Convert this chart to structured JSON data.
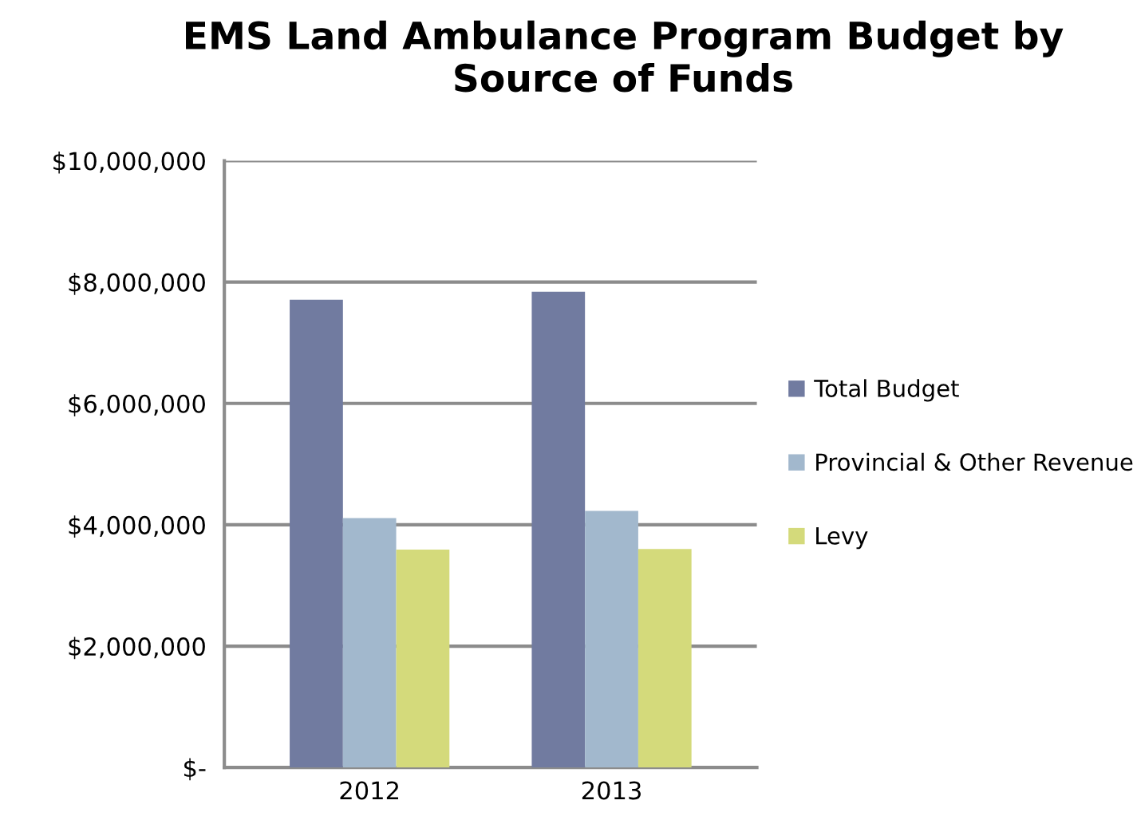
{
  "chart_data": {
    "type": "bar",
    "title": "EMS Land Ambulance Program Budget by Source of Funds",
    "categories": [
      "2012",
      "2013"
    ],
    "series": [
      {
        "name": "Total Budget",
        "color": "#717ba0",
        "values": [
          7710000,
          7840000
        ]
      },
      {
        "name": "Provincial & Other Revenue",
        "color": "#a2b8cd",
        "values": [
          4110000,
          4230000
        ]
      },
      {
        "name": "Levy",
        "color": "#d4da7b",
        "values": [
          3590000,
          3600000
        ]
      }
    ],
    "ylim": [
      0,
      10000000
    ],
    "yticks": [
      {
        "value": 0,
        "label": "$-"
      },
      {
        "value": 2000000,
        "label": "$2,000,000"
      },
      {
        "value": 4000000,
        "label": "$4,000,000"
      },
      {
        "value": 6000000,
        "label": "$6,000,000"
      },
      {
        "value": 8000000,
        "label": "$8,000,000"
      },
      {
        "value": 10000000,
        "label": "$10,000,000"
      }
    ],
    "grid": "y",
    "legend": "right"
  }
}
